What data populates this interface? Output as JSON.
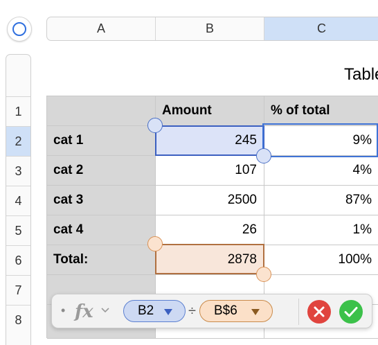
{
  "columns": [
    "A",
    "B",
    "C"
  ],
  "rows": [
    "1",
    "2",
    "3",
    "4",
    "5",
    "6",
    "7",
    "8"
  ],
  "table_title": "Table",
  "table": {
    "headers": [
      "",
      "Amount",
      "% of total"
    ],
    "body": [
      {
        "label": "cat 1",
        "amount": "245",
        "pct": "9%"
      },
      {
        "label": "cat 2",
        "amount": "107",
        "pct": "4%"
      },
      {
        "label": "cat 3",
        "amount": "2500",
        "pct": "87%"
      },
      {
        "label": "cat 4",
        "amount": "26",
        "pct": "1%"
      },
      {
        "label": "Total:",
        "amount": "2878",
        "pct": "100%"
      }
    ]
  },
  "formula_bar": {
    "bullet": "•",
    "fx_label": "fx",
    "tokens": [
      {
        "text": "B2",
        "color": "#cdd9f3",
        "border": "#5b7fd0",
        "arrow": "#3b5fc0"
      },
      {
        "text": "B$6",
        "color": "#fbe0c8",
        "border": "#c98a4a",
        "arrow": "#8a5a20"
      }
    ],
    "operator": "÷",
    "cancel_icon": "x-icon",
    "accept_icon": "checkmark-icon"
  },
  "colors": {
    "selected_col": "#cfe0f7",
    "selected_row": "#cfe0f7",
    "b2_fill": "#dce3f8",
    "b2_border": "#3b5fc0",
    "b6_fill": "#f8e6da",
    "b6_border": "#b07040",
    "c2_border": "#3f73d6",
    "cancel": "#e0443e",
    "accept": "#3cc14a"
  }
}
